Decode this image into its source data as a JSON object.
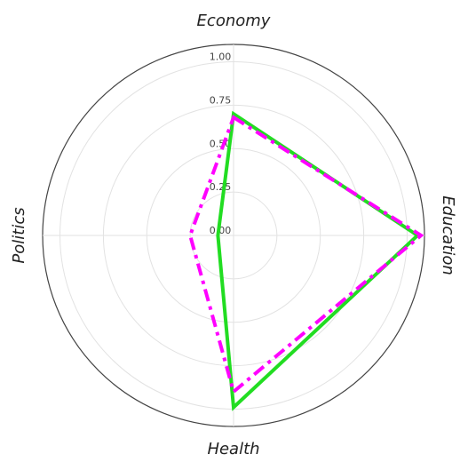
{
  "chart_data": {
    "type": "radar",
    "categories": [
      "Economy",
      "Education",
      "Health",
      "Politics"
    ],
    "series": [
      {
        "color": "#22dd22",
        "dash": "solid",
        "values": [
          0.7,
          1.06,
          0.99,
          0.09
        ]
      },
      {
        "color": "#ff00ff",
        "dash": "dashdot",
        "values": [
          0.68,
          1.08,
          0.9,
          0.25
        ]
      }
    ],
    "ylim": [
      0,
      1.1
    ],
    "yticks": [
      {
        "value": 0,
        "label": "0.00"
      },
      {
        "value": 0.25,
        "label": "0.25"
      },
      {
        "value": 0.5,
        "label": "0.50"
      },
      {
        "value": 0.75,
        "label": "0.75"
      },
      {
        "value": 1,
        "label": "1.00"
      }
    ],
    "grid": true
  }
}
